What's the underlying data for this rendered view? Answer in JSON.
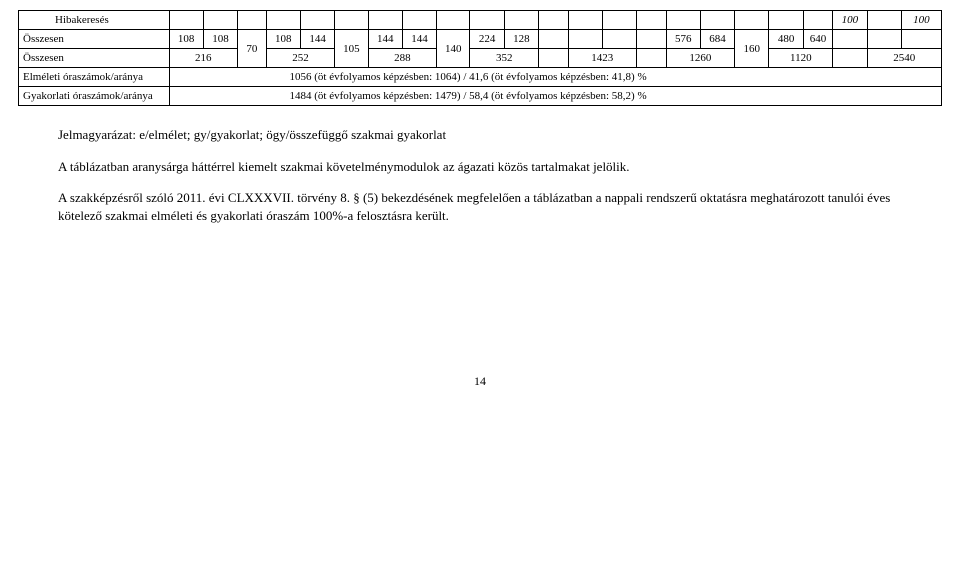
{
  "table": {
    "col_widths_pct": [
      15.8,
      3.6,
      3.6,
      3.0,
      3.6,
      3.6,
      3.5,
      3.6,
      3.6,
      3.5,
      3.6,
      3.6,
      3.1,
      3.6,
      3.6,
      3.1,
      3.6,
      3.6,
      3.6,
      3.6,
      3.1,
      3.6,
      3.6,
      4.2
    ],
    "rows": [
      {
        "cells": [
          {
            "text": "Hibakeresés",
            "class": "indent",
            "style": ""
          },
          {
            "text": ""
          },
          {
            "text": ""
          },
          {
            "text": ""
          },
          {
            "text": ""
          },
          {
            "text": ""
          },
          {
            "text": ""
          },
          {
            "text": ""
          },
          {
            "text": ""
          },
          {
            "text": ""
          },
          {
            "text": ""
          },
          {
            "text": ""
          },
          {
            "text": ""
          },
          {
            "text": ""
          },
          {
            "text": ""
          },
          {
            "text": ""
          },
          {
            "text": ""
          },
          {
            "text": ""
          },
          {
            "text": ""
          },
          {
            "text": ""
          },
          {
            "text": ""
          },
          {
            "text": "100",
            "style": "font-style:italic"
          },
          {
            "text": ""
          },
          {
            "text": "100",
            "style": "font-style:italic"
          }
        ]
      },
      {
        "cells": [
          {
            "text": "Összesen",
            "class": "label"
          },
          {
            "text": "108"
          },
          {
            "text": "108"
          },
          {
            "text": "70",
            "rowspan": 2
          },
          {
            "text": "108"
          },
          {
            "text": "144"
          },
          {
            "text": "105",
            "rowspan": 2
          },
          {
            "text": "144"
          },
          {
            "text": "144"
          },
          {
            "text": "140",
            "rowspan": 2
          },
          {
            "text": "224"
          },
          {
            "text": "128"
          },
          {
            "text": ""
          },
          {
            "text": ""
          },
          {
            "text": ""
          },
          {
            "text": ""
          },
          {
            "text": "576"
          },
          {
            "text": "684"
          },
          {
            "text": "160",
            "rowspan": 2
          },
          {
            "text": "480"
          },
          {
            "text": "640"
          },
          {
            "text": ""
          },
          {
            "text": ""
          },
          {
            "text": ""
          }
        ]
      },
      {
        "cells": [
          {
            "text": "Összesen",
            "class": "label"
          },
          {
            "text": "216",
            "colspan": 2
          },
          {
            "text": "252",
            "colspan": 2
          },
          {
            "text": "288",
            "colspan": 2
          },
          {
            "text": "352",
            "colspan": 2
          },
          {
            "text": ""
          },
          {
            "text": "1423",
            "colspan": 2
          },
          {
            "text": ""
          },
          {
            "text": "1260",
            "colspan": 2
          },
          {
            "text": "1120",
            "colspan": 2
          },
          {
            "text": ""
          },
          {
            "text": "2540",
            "colspan": 2
          }
        ]
      },
      {
        "cells": [
          {
            "text": "Elméleti óraszámok/aránya",
            "class": "label"
          },
          {
            "text": "1056 (öt évfolyamos képzésben: 1064) / 41,6 (öt évfolyamos képzésben: 41,8) %",
            "colspan": 23,
            "style": "text-align:left;padding-left:120px"
          }
        ]
      },
      {
        "cells": [
          {
            "text": "Gyakorlati óraszámok/aránya",
            "class": "label"
          },
          {
            "text": "1484 (öt évfolyamos képzésben: 1479) / 58,4 (öt évfolyamos képzésben: 58,2) %",
            "colspan": 23,
            "style": "text-align:left;padding-left:120px"
          }
        ]
      }
    ]
  },
  "para1": "Jelmagyarázat: e/elmélet; gy/gyakorlat; ögy/összefüggő szakmai gyakorlat",
  "para2": "A táblázatban aranysárga háttérrel kiemelt szakmai követelménymodulok az ágazati közös tartalmakat jelölik.",
  "para3": "A szakképzésről szóló 2011. évi CLXXXVII. törvény 8. § (5) bekezdésének megfelelően a táblázatban a nappali rendszerű oktatásra meghatározott tanulói éves kötelező szakmai elméleti és gyakorlati óraszám 100%-a felosztásra került.",
  "pagenum": "14"
}
